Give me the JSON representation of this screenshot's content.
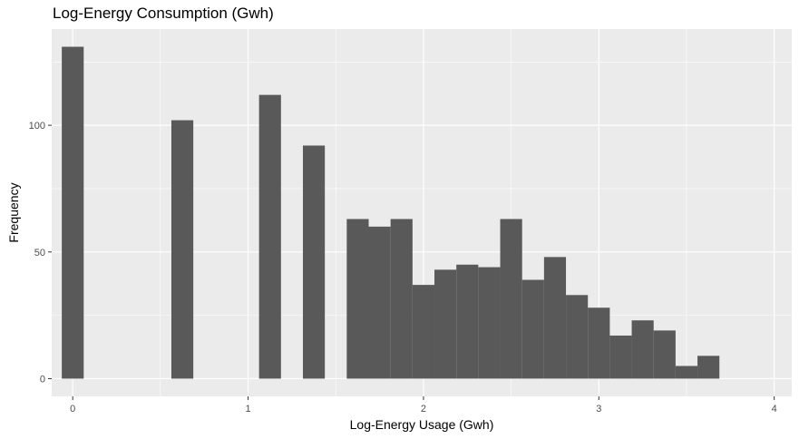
{
  "chart_data": {
    "type": "bar",
    "subtype": "histogram",
    "title": "Log-Energy Consumption (Gwh)",
    "xlabel": "Log-Energy Usage (Gwh)",
    "ylabel": "Frequency",
    "xlim": [
      -0.12,
      4.1
    ],
    "ylim": [
      -7,
      138
    ],
    "x_ticks": [
      0,
      1,
      2,
      3,
      4
    ],
    "x_tick_labels": [
      "0",
      "1",
      "2",
      "3",
      "4"
    ],
    "y_ticks": [
      0,
      50,
      100
    ],
    "y_tick_labels": [
      "0",
      "50",
      "100"
    ],
    "bin_width": 0.125,
    "bins": [
      {
        "x_start": -0.0625,
        "x_end": 0.0625,
        "count": 131
      },
      {
        "x_start": 0.5625,
        "x_end": 0.6875,
        "count": 102
      },
      {
        "x_start": 1.0625,
        "x_end": 1.1875,
        "count": 112
      },
      {
        "x_start": 1.3125,
        "x_end": 1.4375,
        "count": 92
      },
      {
        "x_start": 1.5625,
        "x_end": 1.6875,
        "count": 63
      },
      {
        "x_start": 1.6875,
        "x_end": 1.8125,
        "count": 60
      },
      {
        "x_start": 1.8125,
        "x_end": 1.9375,
        "count": 63
      },
      {
        "x_start": 1.9375,
        "x_end": 2.0625,
        "count": 37
      },
      {
        "x_start": 2.0625,
        "x_end": 2.1875,
        "count": 43
      },
      {
        "x_start": 2.1875,
        "x_end": 2.3125,
        "count": 45
      },
      {
        "x_start": 2.3125,
        "x_end": 2.4375,
        "count": 44
      },
      {
        "x_start": 2.4375,
        "x_end": 2.5625,
        "count": 63
      },
      {
        "x_start": 2.5625,
        "x_end": 2.6875,
        "count": 39
      },
      {
        "x_start": 2.6875,
        "x_end": 2.8125,
        "count": 48
      },
      {
        "x_start": 2.8125,
        "x_end": 2.9375,
        "count": 33
      },
      {
        "x_start": 2.9375,
        "x_end": 3.0625,
        "count": 28
      },
      {
        "x_start": 3.0625,
        "x_end": 3.1875,
        "count": 17
      },
      {
        "x_start": 3.1875,
        "x_end": 3.3125,
        "count": 23
      },
      {
        "x_start": 3.3125,
        "x_end": 3.4375,
        "count": 19
      },
      {
        "x_start": 3.4375,
        "x_end": 3.5625,
        "count": 5
      },
      {
        "x_start": 3.5625,
        "x_end": 3.6875,
        "count": 9
      }
    ],
    "bar_color": "#595959",
    "panel_background": "#ebebeb",
    "grid_color": "#ffffff",
    "grid": true,
    "legend": "none"
  }
}
